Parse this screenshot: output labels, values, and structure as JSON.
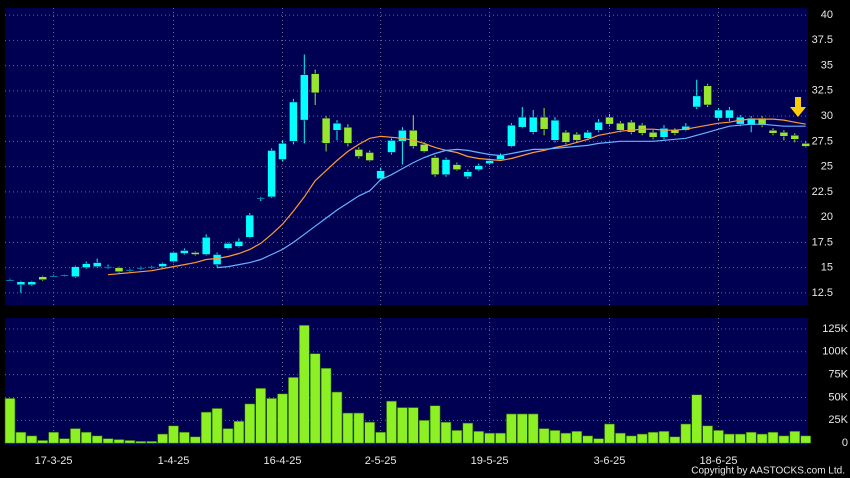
{
  "chart_data": [
    {
      "type": "candlestick",
      "categories": [
        null,
        null,
        null,
        null,
        "17-3-25",
        null,
        null,
        null,
        null,
        null,
        null,
        null,
        null,
        null,
        null,
        "1-4-25",
        null,
        null,
        null,
        null,
        null,
        null,
        null,
        null,
        null,
        "16-4-25",
        null,
        null,
        null,
        null,
        null,
        null,
        null,
        null,
        "2-5-25",
        null,
        null,
        null,
        null,
        null,
        null,
        null,
        null,
        null,
        "19-5-25",
        null,
        null,
        null,
        null,
        null,
        null,
        null,
        null,
        null,
        null,
        "3-6-25",
        null,
        null,
        null,
        null,
        null,
        null,
        null,
        null,
        null,
        "18-6-25",
        null,
        null,
        null,
        null,
        null,
        null,
        null,
        null
      ],
      "open": [
        13.8,
        13.3,
        13.3,
        14.1,
        14.2,
        14.2,
        14.1,
        15.0,
        15.1,
        15.1,
        15.0,
        14.8,
        14.9,
        15.0,
        15.1,
        15.6,
        16.4,
        16.5,
        16.3,
        15.3,
        16.9,
        17.1,
        18.0,
        21.8,
        22.0,
        25.7,
        27.5,
        29.6,
        34.2,
        29.8,
        28.6,
        28.9,
        26.7,
        26.4,
        23.8,
        26.4,
        27.5,
        28.6,
        27.2,
        25.9,
        24.2,
        25.2,
        24.0,
        24.7,
        25.3,
        25.7,
        27.0,
        28.9,
        28.4,
        29.9,
        27.6,
        28.4,
        28.2,
        27.8,
        28.6,
        29.9,
        29.3,
        29.4,
        29.1,
        28.4,
        27.9,
        28.6,
        28.6,
        30.9,
        33.0,
        29.8,
        29.8,
        29.2,
        29.1,
        29.8,
        28.6,
        28.4,
        28.1,
        27.3
      ],
      "high": [
        13.9,
        13.7,
        13.7,
        14.2,
        14.3,
        14.3,
        15.2,
        15.6,
        15.9,
        15.3,
        15.1,
        14.9,
        15.1,
        15.2,
        15.5,
        16.6,
        16.9,
        16.6,
        18.3,
        16.5,
        17.5,
        17.9,
        20.4,
        22.0,
        26.8,
        27.6,
        31.7,
        36.1,
        34.6,
        30.0,
        29.6,
        29.2,
        26.9,
        26.6,
        24.9,
        27.8,
        28.9,
        30.1,
        27.4,
        26.1,
        25.9,
        25.4,
        24.7,
        25.3,
        25.8,
        26.3,
        29.3,
        30.9,
        30.6,
        30.8,
        29.9,
        28.6,
        28.4,
        28.6,
        29.7,
        30.2,
        29.5,
        29.6,
        29.3,
        28.6,
        29.1,
        28.8,
        29.3,
        33.6,
        33.2,
        30.8,
        30.9,
        30.1,
        30.0,
        30.0,
        28.8,
        28.6,
        28.3,
        27.5
      ],
      "low": [
        13.7,
        12.5,
        13.2,
        13.7,
        14.1,
        14.1,
        14.0,
        14.9,
        15.0,
        14.9,
        14.5,
        14.6,
        14.8,
        14.9,
        15.0,
        15.5,
        16.3,
        16.2,
        16.2,
        15.0,
        16.8,
        17.0,
        17.9,
        21.6,
        21.9,
        25.5,
        27.2,
        27.3,
        31.1,
        26.5,
        27.6,
        27.0,
        25.8,
        25.5,
        23.6,
        26.2,
        25.2,
        26.8,
        26.4,
        24.0,
        24.0,
        24.6,
        23.8,
        24.6,
        25.2,
        25.6,
        26.9,
        28.8,
        28.2,
        28.1,
        27.4,
        27.2,
        27.4,
        27.6,
        28.4,
        29.0,
        28.4,
        28.2,
        28.1,
        27.7,
        27.7,
        28.1,
        28.5,
        30.7,
        30.9,
        29.6,
        29.5,
        29.0,
        28.4,
        28.9,
        28.1,
        27.6,
        27.4,
        26.9
      ],
      "close": [
        13.8,
        13.6,
        13.6,
        13.8,
        14.2,
        14.25,
        15.1,
        15.4,
        15.5,
        15.1,
        14.6,
        14.8,
        15.0,
        15.1,
        15.4,
        16.5,
        16.7,
        16.3,
        18.0,
        16.3,
        17.4,
        17.6,
        20.2,
        21.9,
        26.6,
        27.3,
        31.4,
        34.1,
        32.3,
        27.3,
        29.3,
        27.3,
        26.0,
        25.6,
        24.6,
        27.6,
        28.6,
        27.0,
        26.5,
        24.2,
        25.7,
        24.7,
        24.5,
        25.1,
        25.6,
        26.1,
        29.1,
        29.9,
        29.9,
        28.7,
        29.6,
        27.4,
        27.6,
        28.4,
        29.4,
        29.2,
        28.6,
        28.4,
        28.3,
        27.9,
        28.8,
        28.3,
        29.0,
        32.0,
        31.1,
        30.6,
        30.6,
        29.9,
        29.8,
        29.1,
        28.3,
        28.0,
        27.7,
        27.0
      ],
      "up_color": "#00ffff",
      "down_color": "#99e62e",
      "series": [
        {
          "color": "#ff9933",
          "values": [
            null,
            null,
            null,
            null,
            null,
            null,
            null,
            null,
            null,
            14.3,
            14.4,
            14.5,
            14.6,
            14.7,
            14.9,
            15.1,
            15.3,
            15.5,
            15.8,
            15.9,
            16.1,
            16.4,
            16.8,
            17.4,
            18.3,
            19.3,
            20.6,
            22.0,
            23.6,
            24.6,
            25.6,
            26.5,
            27.2,
            27.8,
            28.0,
            27.9,
            27.8,
            27.6,
            27.3,
            26.9,
            26.6,
            26.4,
            26.0,
            25.8,
            25.7,
            25.6,
            25.8,
            26.1,
            26.4,
            26.6,
            26.9,
            27.1,
            27.4,
            27.7,
            28.1,
            28.3,
            28.5,
            28.6,
            28.7,
            28.7,
            28.6,
            28.6,
            28.7,
            28.9,
            29.1,
            29.3,
            29.4,
            29.6,
            29.7,
            29.7,
            29.7,
            29.6,
            29.4,
            29.2
          ]
        },
        {
          "color": "#66b3ff",
          "values": [
            null,
            null,
            null,
            null,
            null,
            null,
            null,
            null,
            null,
            null,
            null,
            null,
            null,
            null,
            null,
            null,
            null,
            null,
            null,
            15.0,
            15.1,
            15.3,
            15.5,
            15.8,
            16.3,
            16.8,
            17.5,
            18.3,
            19.1,
            19.9,
            20.7,
            21.4,
            22.1,
            22.6,
            23.7,
            24.2,
            24.8,
            25.4,
            25.9,
            26.3,
            26.6,
            26.7,
            26.6,
            26.4,
            26.2,
            26.1,
            26.3,
            26.5,
            26.7,
            26.7,
            26.8,
            26.9,
            27.0,
            27.1,
            27.3,
            27.4,
            27.5,
            27.5,
            27.5,
            27.5,
            27.6,
            27.7,
            27.8,
            28.1,
            28.4,
            28.7,
            29.0,
            29.1,
            29.2,
            29.2,
            29.1,
            29.0,
            29.0,
            29.0
          ]
        }
      ],
      "ylim": [
        11.3,
        40.7
      ],
      "yticks": [
        12.5,
        15,
        17.5,
        20,
        22.5,
        25,
        27.5,
        30,
        32.5,
        35,
        37.5,
        40
      ],
      "grid": true
    },
    {
      "type": "bar",
      "values": [
        49000,
        12000,
        8000,
        3000,
        12000,
        5000,
        16000,
        12000,
        8000,
        5000,
        4000,
        3000,
        2000,
        2000,
        10000,
        19000,
        12000,
        7000,
        34000,
        38000,
        16000,
        24000,
        43000,
        60000,
        49000,
        54000,
        72000,
        129000,
        98000,
        82000,
        56000,
        33000,
        33000,
        23000,
        12000,
        46000,
        39000,
        39000,
        25000,
        41000,
        23000,
        14000,
        22000,
        13000,
        11000,
        11000,
        32000,
        32000,
        32000,
        16000,
        14000,
        11000,
        13000,
        8000,
        5000,
        21000,
        11000,
        8000,
        10000,
        12000,
        13000,
        7000,
        21000,
        53000,
        19000,
        14000,
        10000,
        10000,
        12000,
        10000,
        12000,
        8000,
        13000,
        8000
      ],
      "color": "#8cf025",
      "ylim": [
        -2000,
        137000
      ],
      "yticks": [
        0,
        {
          "value": 25000,
          "label": "25K"
        },
        {
          "value": 50000,
          "label": "50K"
        },
        {
          "value": 75000,
          "label": "75K"
        },
        {
          "value": 100000,
          "label": "100K"
        },
        {
          "value": 125000,
          "label": "125K"
        }
      ],
      "grid": true
    }
  ],
  "copyright": "Copyright by AASTOCKS.com Ltd."
}
